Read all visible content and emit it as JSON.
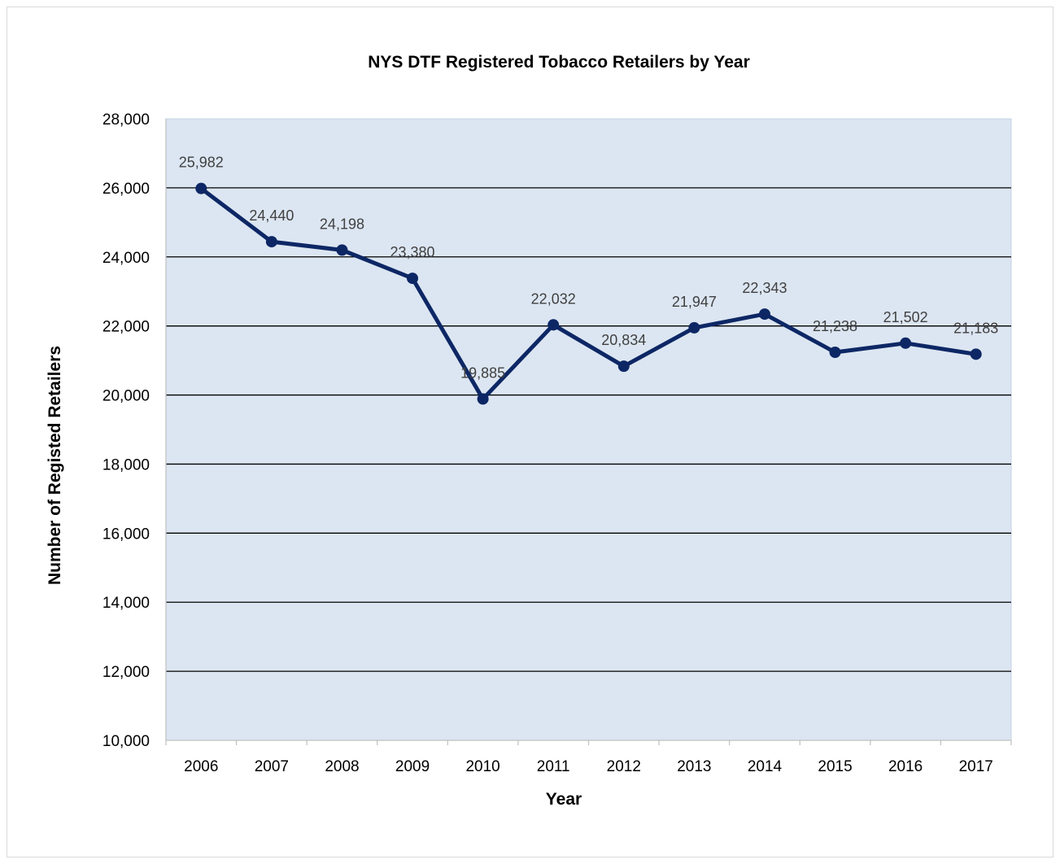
{
  "chart_data": {
    "type": "line",
    "title": "NYS DTF Registered Tobacco Retailers by Year",
    "xlabel": "Year",
    "ylabel": "Number of Registed Retailers",
    "categories": [
      "2006",
      "2007",
      "2008",
      "2009",
      "2010",
      "2011",
      "2012",
      "2013",
      "2014",
      "2015",
      "2016",
      "2017"
    ],
    "series": [
      {
        "values": [
          25982,
          24440,
          24198,
          23380,
          19885,
          22032,
          20834,
          21947,
          22343,
          21238,
          21502,
          21183
        ],
        "labels": [
          "25,982",
          "24,440",
          "24,198",
          "23,380",
          "19,885",
          "22,032",
          "20,834",
          "21,947",
          "22,343",
          "21,238",
          "21,502",
          "21,183"
        ],
        "color": "#0d2765"
      }
    ],
    "ylim": [
      10000,
      28000
    ],
    "yticks": [
      10000,
      12000,
      14000,
      16000,
      18000,
      20000,
      22000,
      24000,
      26000,
      28000
    ],
    "ytick_labels": [
      "10,000",
      "12,000",
      "14,000",
      "16,000",
      "18,000",
      "20,000",
      "22,000",
      "24,000",
      "26,000",
      "28,000"
    ],
    "grid": true,
    "legend": "none",
    "plot_background": "#dce6f2",
    "gridline_color": "#000000"
  }
}
